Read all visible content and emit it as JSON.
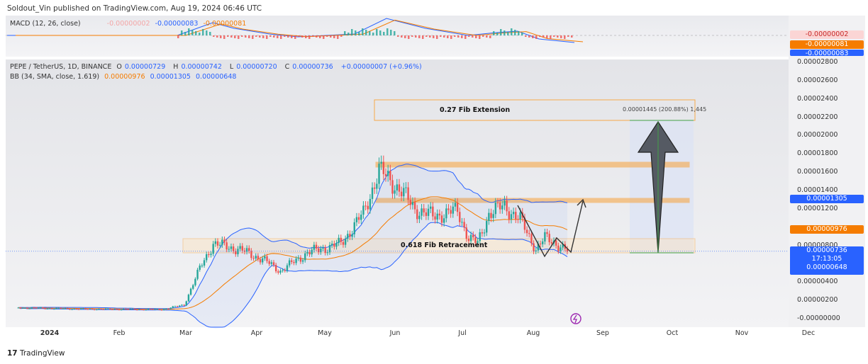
{
  "header": {
    "published": "Soldout_Vin published on TradingView.com, Aug 19, 2024 06:46 UTC"
  },
  "macd": {
    "label": "MACD (12, 26, close)",
    "hist": "-0.00000002",
    "macd": "-0.00000083",
    "signal": "-0.00000081"
  },
  "symbol": {
    "name": "PEPE / TetherUS, 1D, BINANCE",
    "o_label": "O",
    "o": "0.00000729",
    "h_label": "H",
    "h": "0.00000742",
    "l_label": "L",
    "l": "0.00000720",
    "c_label": "C",
    "c": "0.00000736",
    "change": "+0.00000007 (+0.96%)"
  },
  "bb": {
    "label": "BB (34, SMA, close, 1.619)",
    "basis": "0.00000976",
    "upper": "0.00001305",
    "lower": "0.00000648"
  },
  "axis": {
    "ticks": [
      "0.00002800",
      "0.00002600",
      "0.00002400",
      "0.00002200",
      "0.00002000",
      "0.00001800",
      "0.00001600",
      "0.00001400",
      "0.00001200",
      "0.00000800",
      "0.00000400",
      "0.00000200",
      "-0.00000000"
    ],
    "tags": {
      "macd_hist": "-0.00000002",
      "macd_signal": "-0.00000081",
      "macd_line": "-0.00000083",
      "bb_upper": "0.00001305",
      "bb_basis": "0.00000976",
      "price": "0.00000736",
      "countdown": "17:13:05",
      "bb_lower": "0.00000648"
    }
  },
  "time_axis": [
    "2024",
    "Feb",
    "Mar",
    "Apr",
    "May",
    "Jun",
    "Jul",
    "Aug",
    "Sep",
    "Oct",
    "Nov",
    "Dec"
  ],
  "annotations": {
    "fib_ext": "0.27 Fib Extension",
    "fib_ret": "0.618 Fib Retracement",
    "measure": "0.00001445 (200.88%) 1,445"
  },
  "brand": "TradingView",
  "colors": {
    "up": "#26a69a",
    "down": "#ef5350",
    "bb": "#2962ff",
    "basis": "#f57c00",
    "zone": "#f7a94a"
  },
  "chart_data": {
    "type": "candlestick",
    "price_unit": "1e-8 USDT",
    "anchors_date": [
      "2023-12-18",
      "2024-01-15",
      "2024-02-20",
      "2024-03-01",
      "2024-03-08",
      "2024-03-14",
      "2024-03-25",
      "2024-04-05",
      "2024-04-13",
      "2024-04-25",
      "2024-05-10",
      "2024-05-20",
      "2024-05-27",
      "2024-06-05",
      "2024-06-12",
      "2024-06-20",
      "2024-07-01",
      "2024-07-06",
      "2024-07-10",
      "2024-07-15",
      "2024-07-22",
      "2024-07-29",
      "2024-08-05",
      "2024-08-09",
      "2024-08-13",
      "2024-08-19"
    ],
    "anchors_close": [
      120,
      105,
      100,
      150,
      550,
      820,
      760,
      650,
      520,
      720,
      820,
      1150,
      1620,
      1420,
      1200,
      1120,
      1180,
      880,
      820,
      1150,
      1230,
      1080,
      760,
      880,
      840,
      736
    ],
    "ylim": [
      0,
      2800
    ]
  }
}
